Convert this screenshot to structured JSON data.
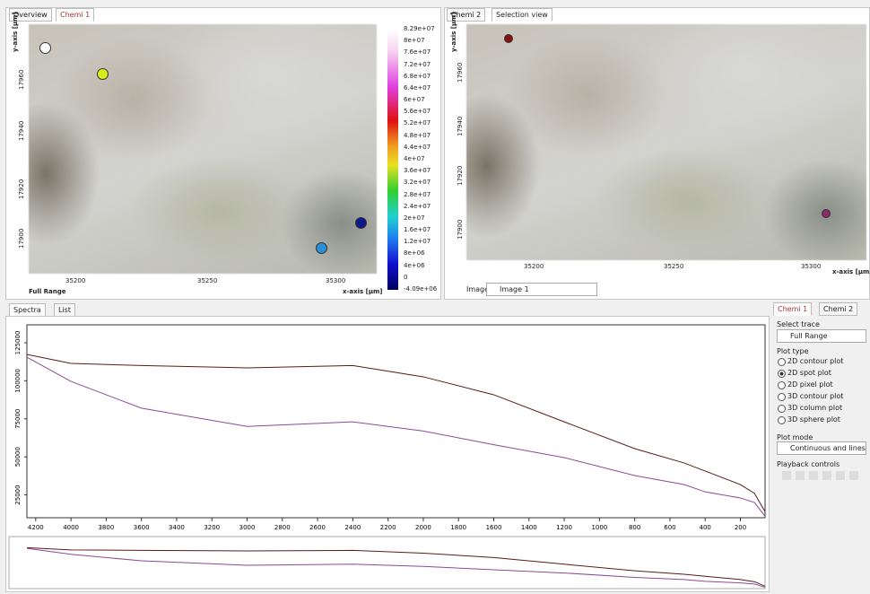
{
  "left_panel": {
    "tabs": [
      "Overview",
      "Chemi 1"
    ],
    "y_axis_label": "y-axis [µm]",
    "x_axis_label": "x-axis [µm]",
    "x_ticks": [
      "35200",
      "35250",
      "35300"
    ],
    "y_ticks": [
      "17960",
      "17940",
      "17920",
      "17900"
    ],
    "trace_label": "Full Range",
    "colorbar": [
      "8.29e+07",
      "8e+07",
      "7.6e+07",
      "7.2e+07",
      "6.8e+07",
      "6.4e+07",
      "6e+07",
      "5.6e+07",
      "5.2e+07",
      "4.8e+07",
      "4.4e+07",
      "4e+07",
      "3.6e+07",
      "3.2e+07",
      "2.8e+07",
      "2.4e+07",
      "2e+07",
      "1.6e+07",
      "1.2e+07",
      "8e+06",
      "4e+06",
      "0",
      "-4.09e+06"
    ]
  },
  "right_panel": {
    "tabs": [
      "Chemi 2",
      "Selection view"
    ],
    "y_axis_label": "y-axis [µm]",
    "x_axis_label": "x-axis [µm]",
    "x_ticks": [
      "35200",
      "35250",
      "35300"
    ],
    "y_ticks": [
      "17960",
      "17940",
      "17920",
      "17900"
    ],
    "image_label": "Image:",
    "image_value": "Image 1"
  },
  "bottom_tabs": [
    "Spectra",
    "List"
  ],
  "sidebar": {
    "tabs": [
      "Chemi 1",
      "Chemi 2"
    ],
    "select_trace": "Select trace",
    "trace_value": "Full Range",
    "plot_type": "Plot type",
    "options": [
      "2D contour plot",
      "2D spot plot",
      "2D pixel plot",
      "3D contour plot",
      "3D column plot",
      "3D sphere plot"
    ],
    "selected": "2D spot plot",
    "plot_mode": "Plot mode",
    "plot_mode_value": "Continuous and lines",
    "playback": "Playback controls"
  },
  "chart_data": {
    "type": "line",
    "x": [
      4250,
      4000,
      3600,
      3000,
      2400,
      2000,
      1600,
      1200,
      800,
      520,
      400,
      200,
      120,
      60
    ],
    "series": [
      {
        "color": "#5a1a1a",
        "values": [
          117300,
          111400,
          110000,
          108500,
          110000,
          102600,
          90800,
          73000,
          55400,
          46000,
          40700,
          31800,
          26000,
          14000
        ]
      },
      {
        "color": "#8a4a9a",
        "values": [
          115500,
          99600,
          82000,
          70000,
          73000,
          67000,
          58000,
          49500,
          37700,
          31800,
          27000,
          23000,
          20000,
          11000
        ]
      }
    ],
    "xlim": [
      4250,
      60
    ],
    "xticks": [
      4200,
      4000,
      3800,
      3600,
      3400,
      3200,
      3000,
      2800,
      2600,
      2400,
      2200,
      2000,
      1800,
      1600,
      1400,
      1200,
      1000,
      800,
      600,
      400,
      200
    ],
    "ylim": [
      10000,
      135000
    ],
    "yticks": [
      125000,
      100000,
      75000,
      50000,
      25000
    ]
  }
}
